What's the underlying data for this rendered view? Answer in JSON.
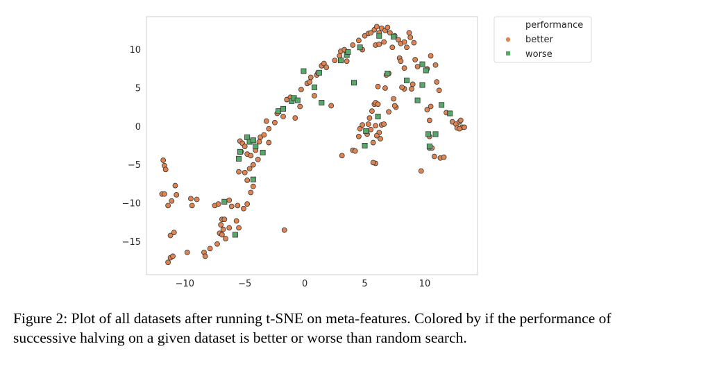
{
  "chart_data": {
    "type": "scatter",
    "title": "",
    "xlabel": "",
    "ylabel": "",
    "xlim": [
      -13.2,
      14.4
    ],
    "ylim": [
      -19.3,
      14.3
    ],
    "xticks": [
      -10,
      -5,
      0,
      5,
      10
    ],
    "yticks": [
      10,
      5,
      0,
      -5,
      -10,
      -15
    ],
    "xtick_labels": [
      "−10",
      "−5",
      "0",
      "5",
      "10"
    ],
    "ytick_labels": [
      "10",
      "5",
      "0",
      "−5",
      "−10",
      "−15"
    ],
    "grid": false,
    "legend": {
      "title": "performance",
      "placement": "outside-top-right",
      "entries": [
        {
          "label": "better",
          "color": "#dd8452",
          "marker": "circle"
        },
        {
          "label": "worse",
          "color": "#55a868",
          "marker": "square"
        }
      ]
    },
    "series": [
      {
        "name": "better",
        "color": "#dd8452",
        "marker": "circle",
        "points": [
          [
            -11.8,
            -4.4
          ],
          [
            -11.7,
            -5.1
          ],
          [
            -11.6,
            -5.6
          ],
          [
            -11.9,
            -8.8
          ],
          [
            -11.7,
            -8.8
          ],
          [
            -11.4,
            -10.3
          ],
          [
            -11.1,
            -9.7
          ],
          [
            -10.8,
            -7.7
          ],
          [
            -10.7,
            -8.9
          ],
          [
            -11.2,
            -14.2
          ],
          [
            -10.9,
            -13.8
          ],
          [
            -11.2,
            -17.1
          ],
          [
            -11.4,
            -17.7
          ],
          [
            -11.0,
            -16.9
          ],
          [
            -9.8,
            -16.4
          ],
          [
            -9.5,
            -9.4
          ],
          [
            -9.4,
            -10.3
          ],
          [
            -9.0,
            -9.5
          ],
          [
            -8.4,
            -16.4
          ],
          [
            -8.3,
            -16.9
          ],
          [
            -7.9,
            -15.9
          ],
          [
            -7.3,
            -15.3
          ],
          [
            -7.5,
            -10.3
          ],
          [
            -7.2,
            -10.1
          ],
          [
            -7.0,
            -12.8
          ],
          [
            -6.9,
            -12.1
          ],
          [
            -6.7,
            -12.1
          ],
          [
            -7.1,
            -13.9
          ],
          [
            -6.8,
            -13.4
          ],
          [
            -6.9,
            -14.1
          ],
          [
            -6.6,
            -14.6
          ],
          [
            -6.3,
            -13.2
          ],
          [
            -6.3,
            -9.6
          ],
          [
            -6.1,
            -10.4
          ],
          [
            -5.6,
            -10.3
          ],
          [
            -5.5,
            -13.2
          ],
          [
            -5.7,
            -12.3
          ],
          [
            -5.1,
            -10.7
          ],
          [
            -4.8,
            -10.1
          ],
          [
            -4.5,
            -8.6
          ],
          [
            -5.0,
            -6.0
          ],
          [
            -5.5,
            -5.9
          ],
          [
            -4.8,
            -7.0
          ],
          [
            -4.3,
            -7.8
          ],
          [
            -4.6,
            -5.5
          ],
          [
            -4.3,
            -5.0
          ],
          [
            -3.9,
            -4.3
          ],
          [
            -5.4,
            -1.9
          ],
          [
            -5.2,
            -2.2
          ],
          [
            -5.0,
            -2.6
          ],
          [
            -5.3,
            -3.3
          ],
          [
            -4.8,
            -3.6
          ],
          [
            -4.5,
            -3.8
          ],
          [
            -4.1,
            -3.1
          ],
          [
            -3.8,
            -2.0
          ],
          [
            -3.7,
            -1.4
          ],
          [
            -3.4,
            -1.1
          ],
          [
            -3.0,
            -2.1
          ],
          [
            -3.2,
            0.7
          ],
          [
            -3.0,
            -0.3
          ],
          [
            -2.5,
            0.5
          ],
          [
            -2.3,
            1.7
          ],
          [
            -1.8,
            1.3
          ],
          [
            -1.5,
            3.5
          ],
          [
            -1.2,
            3.8
          ],
          [
            -0.8,
            1.1
          ],
          [
            -0.4,
            2.6
          ],
          [
            -0.3,
            4.8
          ],
          [
            0.2,
            5.6
          ],
          [
            0.4,
            5.8
          ],
          [
            0.5,
            6.4
          ],
          [
            0.8,
            4.0
          ],
          [
            1.0,
            6.7
          ],
          [
            1.1,
            7.0
          ],
          [
            1.4,
            7.9
          ],
          [
            1.6,
            8.2
          ],
          [
            1.8,
            7.7
          ],
          [
            2.2,
            2.7
          ],
          [
            2.5,
            8.6
          ],
          [
            2.9,
            9.2
          ],
          [
            3.0,
            9.8
          ],
          [
            3.3,
            10.0
          ],
          [
            3.5,
            8.5
          ],
          [
            4.0,
            10.6
          ],
          [
            4.5,
            11.2
          ],
          [
            4.8,
            10.0
          ],
          [
            5.0,
            11.8
          ],
          [
            5.3,
            12.1
          ],
          [
            5.5,
            12.2
          ],
          [
            5.8,
            12.6
          ],
          [
            6.0,
            13.0
          ],
          [
            6.2,
            12.2
          ],
          [
            6.4,
            12.8
          ],
          [
            6.7,
            12.5
          ],
          [
            6.9,
            12.9
          ],
          [
            7.1,
            12.2
          ],
          [
            7.5,
            11.8
          ],
          [
            7.8,
            11.3
          ],
          [
            8.0,
            10.8
          ],
          [
            8.3,
            11.0
          ],
          [
            8.5,
            10.3
          ],
          [
            8.7,
            12.2
          ],
          [
            8.8,
            11.6
          ],
          [
            9.1,
            10.9
          ],
          [
            6.6,
            11.0
          ],
          [
            5.9,
            10.6
          ],
          [
            6.2,
            10.7
          ],
          [
            7.3,
            10.3
          ],
          [
            7.9,
            8.9
          ],
          [
            8.0,
            8.5
          ],
          [
            8.3,
            7.6
          ],
          [
            9.2,
            8.7
          ],
          [
            9.4,
            7.8
          ],
          [
            10.2,
            7.5
          ],
          [
            10.5,
            9.2
          ],
          [
            10.9,
            8.0
          ],
          [
            11.0,
            5.8
          ],
          [
            11.2,
            4.7
          ],
          [
            6.8,
            6.7
          ],
          [
            7.0,
            6.9
          ],
          [
            6.1,
            5.2
          ],
          [
            6.7,
            5.0
          ],
          [
            7.4,
            3.6
          ],
          [
            7.6,
            2.5
          ],
          [
            8.3,
            4.9
          ],
          [
            8.1,
            5.1
          ],
          [
            9.0,
            5.5
          ],
          [
            8.9,
            4.9
          ],
          [
            5.8,
            2.9
          ],
          [
            5.9,
            3.1
          ],
          [
            6.1,
            2.9
          ],
          [
            5.6,
            2.0
          ],
          [
            5.4,
            1.1
          ],
          [
            5.3,
            0.3
          ],
          [
            5.9,
            0.1
          ],
          [
            5.5,
            -0.4
          ],
          [
            6.2,
            -0.8
          ],
          [
            5.2,
            -1.0
          ],
          [
            4.6,
            -0.3
          ],
          [
            4.8,
            0.2
          ],
          [
            6.4,
            0.2
          ],
          [
            6.6,
            0.3
          ],
          [
            7.0,
            1.9
          ],
          [
            7.5,
            2.7
          ],
          [
            6.0,
            -1.2
          ],
          [
            4.5,
            -1.3
          ],
          [
            6.3,
            -1.6
          ],
          [
            5.7,
            -2.1
          ],
          [
            4.0,
            -3.1
          ],
          [
            4.2,
            -3.2
          ],
          [
            3.1,
            -3.8
          ],
          [
            5.9,
            -4.8
          ],
          [
            5.7,
            -4.7
          ],
          [
            9.7,
            -5.8
          ],
          [
            10.4,
            -1.3
          ],
          [
            10.4,
            -2.8
          ],
          [
            10.6,
            -2.8
          ],
          [
            10.8,
            -3.9
          ],
          [
            11.3,
            -4.1
          ],
          [
            11.6,
            -4.0
          ],
          [
            10.4,
            0.8
          ],
          [
            10.2,
            2.2
          ],
          [
            10.5,
            2.6
          ],
          [
            11.8,
            1.8
          ],
          [
            12.3,
            0.6
          ],
          [
            12.6,
            0.3
          ],
          [
            12.9,
            0.6
          ],
          [
            13.0,
            0.8
          ],
          [
            12.7,
            -0.2
          ],
          [
            13.1,
            -0.1
          ],
          [
            13.3,
            -0.1
          ],
          [
            12.9,
            -0.3
          ],
          [
            -1.7,
            -13.5
          ]
        ]
      },
      {
        "name": "worse",
        "color": "#55a868",
        "marker": "square",
        "points": [
          [
            -6.7,
            -9.8
          ],
          [
            -5.8,
            -14.1
          ],
          [
            -5.5,
            -4.2
          ],
          [
            -5.4,
            -3.3
          ],
          [
            -4.8,
            -1.4
          ],
          [
            -4.6,
            -2.0
          ],
          [
            -4.3,
            -1.8
          ],
          [
            -4.1,
            -2.6
          ],
          [
            -4.3,
            -6.9
          ],
          [
            -3.5,
            -3.4
          ],
          [
            -2.2,
            2.0
          ],
          [
            -1.8,
            2.3
          ],
          [
            -1.1,
            3.3
          ],
          [
            -0.9,
            3.7
          ],
          [
            -0.6,
            3.4
          ],
          [
            -0.1,
            7.2
          ],
          [
            0.8,
            5.1
          ],
          [
            1.2,
            7.0
          ],
          [
            1.4,
            3.1
          ],
          [
            3.0,
            8.6
          ],
          [
            3.5,
            9.3
          ],
          [
            3.6,
            9.7
          ],
          [
            4.1,
            5.7
          ],
          [
            4.6,
            10.3
          ],
          [
            5.1,
            -0.6
          ],
          [
            5.0,
            -2.5
          ],
          [
            6.1,
            1.3
          ],
          [
            6.2,
            11.8
          ],
          [
            6.9,
            6.9
          ],
          [
            7.4,
            11.7
          ],
          [
            8.5,
            6.0
          ],
          [
            9.4,
            3.4
          ],
          [
            9.8,
            8.1
          ],
          [
            10.1,
            7.3
          ],
          [
            9.8,
            5.4
          ],
          [
            10.3,
            -1.0
          ],
          [
            10.4,
            -2.6
          ],
          [
            10.9,
            -1.0
          ],
          [
            11.4,
            2.8
          ],
          [
            12.1,
            1.7
          ]
        ]
      }
    ]
  },
  "caption": {
    "line1": "Figure 2: Plot of all datasets after running t-SNE on meta-features. Colored by if the performance of",
    "line2": "successive halving on a given dataset is better or worse than random search."
  }
}
